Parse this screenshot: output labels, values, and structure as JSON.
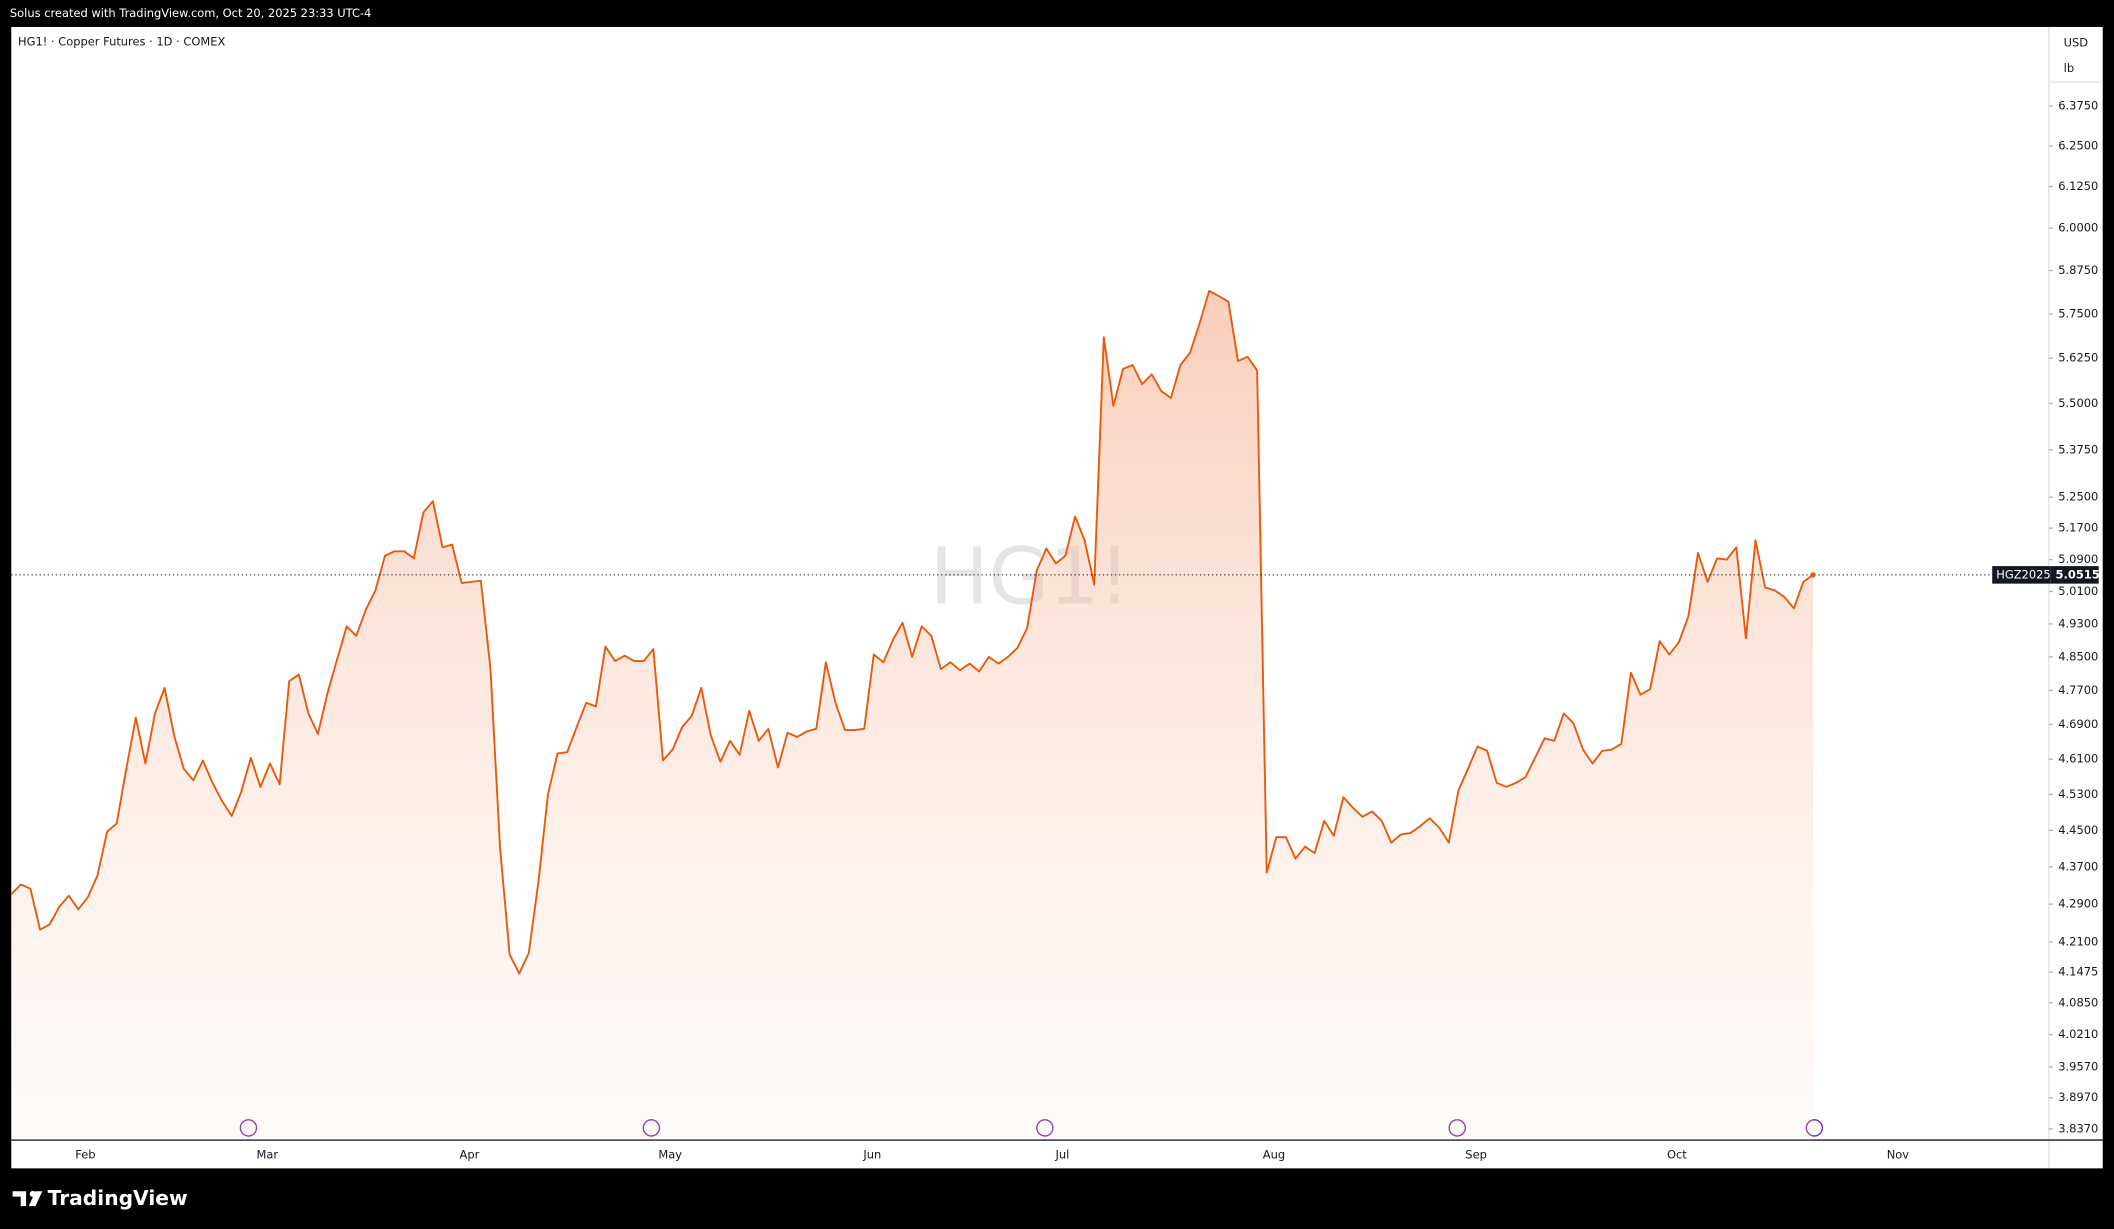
{
  "header": {
    "text": "Solus created with TradingView.com, Oct 20, 2025 23:33 UTC-4"
  },
  "chart_data": {
    "type": "area",
    "title": "HG1! · Copper Futures · 1D · COMEX",
    "watermark": "HG1!",
    "currency": "USD",
    "unit": "lb",
    "log_scale": true,
    "x_labels": [
      "Feb",
      "Mar",
      "Apr",
      "May",
      "Jun",
      "Jul",
      "Aug",
      "Sep",
      "Oct",
      "Nov"
    ],
    "series": [
      {
        "name": "HGZ2025",
        "color": "#e8590c",
        "values": [
          4.311,
          4.332,
          4.323,
          4.236,
          4.247,
          4.284,
          4.308,
          4.279,
          4.305,
          4.352,
          4.447,
          4.465,
          4.588,
          4.706,
          4.6,
          4.716,
          4.776,
          4.664,
          4.588,
          4.562,
          4.607,
          4.556,
          4.515,
          4.482,
          4.536,
          4.613,
          4.547,
          4.6,
          4.553,
          4.792,
          4.808,
          4.716,
          4.668,
          4.764,
          4.844,
          4.924,
          4.901,
          4.965,
          5.013,
          5.1,
          5.111,
          5.111,
          5.093,
          5.21,
          5.24,
          5.121,
          5.128,
          5.031,
          5.034,
          5.037,
          4.821,
          4.412,
          4.184,
          4.145,
          4.187,
          4.337,
          4.53,
          4.623,
          4.626,
          4.684,
          4.741,
          4.732,
          4.875,
          4.84,
          4.853,
          4.84,
          4.84,
          4.869,
          4.607,
          4.632,
          4.684,
          4.71,
          4.776,
          4.664,
          4.604,
          4.652,
          4.62,
          4.722,
          4.652,
          4.68,
          4.591,
          4.671,
          4.661,
          4.674,
          4.68,
          4.837,
          4.741,
          4.677,
          4.677,
          4.68,
          4.856,
          4.837,
          4.891,
          4.933,
          4.85,
          4.924,
          4.901,
          4.821,
          4.837,
          4.818,
          4.834,
          4.815,
          4.85,
          4.834,
          4.85,
          4.872,
          4.92,
          5.062,
          5.118,
          5.08,
          5.1,
          5.2,
          5.139,
          5.027,
          5.684,
          5.493,
          5.595,
          5.606,
          5.553,
          5.58,
          5.534,
          5.515,
          5.606,
          5.64,
          5.723,
          5.816,
          5.801,
          5.785,
          5.617,
          5.629,
          5.591,
          4.358,
          4.435,
          4.435,
          4.388,
          4.414,
          4.4,
          4.471,
          4.438,
          4.524,
          4.5,
          4.48,
          4.492,
          4.471,
          4.423,
          4.441,
          4.444,
          4.459,
          4.477,
          4.456,
          4.423,
          4.539,
          4.588,
          4.639,
          4.629,
          4.556,
          4.547,
          4.556,
          4.569,
          4.613,
          4.658,
          4.652,
          4.716,
          4.693,
          4.632,
          4.6,
          4.629,
          4.632,
          4.645,
          4.812,
          4.76,
          4.773,
          4.888,
          4.856,
          4.885,
          4.949,
          5.107,
          5.034,
          5.093,
          5.09,
          5.121,
          4.895,
          5.139,
          5.02,
          5.013,
          4.997,
          4.968,
          5.034,
          5.0515
        ]
      }
    ],
    "ylim": [
      3.816,
      6.63
    ],
    "yticks": [
      {
        "value": 6.375,
        "label": "6.3750"
      },
      {
        "value": 6.25,
        "label": "6.2500"
      },
      {
        "value": 6.125,
        "label": "6.1250"
      },
      {
        "value": 6,
        "label": "6.0000"
      },
      {
        "value": 5.875,
        "label": "5.8750"
      },
      {
        "value": 5.75,
        "label": "5.7500"
      },
      {
        "value": 5.625,
        "label": "5.6250"
      },
      {
        "value": 5.5,
        "label": "5.5000"
      },
      {
        "value": 5.375,
        "label": "5.3750"
      },
      {
        "value": 5.25,
        "label": "5.2500"
      },
      {
        "value": 5.17,
        "label": "5.1700"
      },
      {
        "value": 5.09,
        "label": "5.0900"
      },
      {
        "value": 5.01,
        "label": "5.0100"
      },
      {
        "value": 4.93,
        "label": "4.9300"
      },
      {
        "value": 4.85,
        "label": "4.8500"
      },
      {
        "value": 4.77,
        "label": "4.7700"
      },
      {
        "value": 4.69,
        "label": "4.6900"
      },
      {
        "value": 4.61,
        "label": "4.6100"
      },
      {
        "value": 4.53,
        "label": "4.5300"
      },
      {
        "value": 4.45,
        "label": "4.4500"
      },
      {
        "value": 4.37,
        "label": "4.3700"
      },
      {
        "value": 4.29,
        "label": "4.2900"
      },
      {
        "value": 4.21,
        "label": "4.2100"
      },
      {
        "value": 4.1475,
        "label": "4.1475"
      },
      {
        "value": 4.085,
        "label": "4.0850"
      },
      {
        "value": 4.021,
        "label": "4.0210"
      },
      {
        "value": 3.957,
        "label": "3.9570"
      },
      {
        "value": 3.897,
        "label": "3.8970"
      },
      {
        "value": 3.837,
        "label": "3.8370"
      }
    ]
  },
  "footer": {
    "brand": "TradingView"
  }
}
